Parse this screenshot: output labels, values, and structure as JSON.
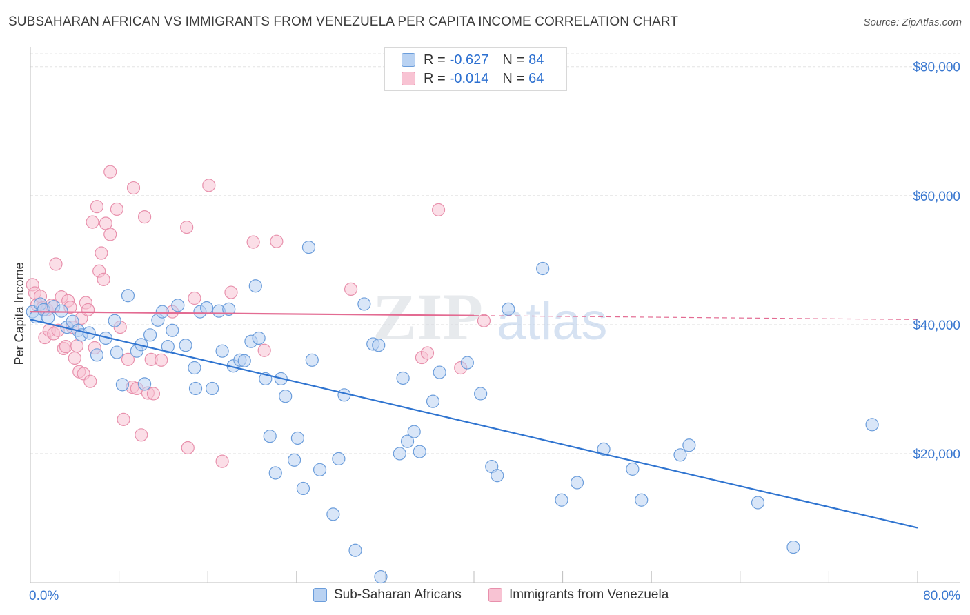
{
  "title": "SUBSAHARAN AFRICAN VS IMMIGRANTS FROM VENEZUELA PER CAPITA INCOME CORRELATION CHART",
  "source": "Source: ZipAtlas.com",
  "watermark": {
    "zip": "ZIP",
    "atlas": "atlas"
  },
  "legend": {
    "series1": {
      "r_label": "R =",
      "r_value": "-0.627",
      "n_label": "N =",
      "n_value": "84"
    },
    "series2": {
      "r_label": "R =",
      "r_value": "-0.014",
      "n_label": "N =",
      "n_value": "64"
    }
  },
  "bottom_legend": {
    "series1": "Sub-Saharan Africans",
    "series2": "Immigrants from Venezuela"
  },
  "colors": {
    "blue_fill": "#b9d2f2",
    "blue_stroke": "#6b9ddb",
    "blue_line": "#2f74d0",
    "pink_fill": "#f8c3d3",
    "pink_stroke": "#e890ac",
    "pink_line": "#e36b92",
    "tick_label": "#3a78d0",
    "grid": "#e4e4e4"
  },
  "chart_data": {
    "type": "scatter",
    "xlabel": "",
    "ylabel": "Per Capita Income",
    "xlim": [
      0,
      80
    ],
    "ylim": [
      0,
      82000
    ],
    "x_tick_labels": [
      "0.0%",
      "80.0%"
    ],
    "y_ticks": [
      {
        "value": 20000,
        "label": "$20,000"
      },
      {
        "value": 40000,
        "label": "$40,000"
      },
      {
        "value": 60000,
        "label": "$60,000"
      },
      {
        "value": 80000,
        "label": "$80,000"
      }
    ],
    "grid": true,
    "series": [
      {
        "name": "Sub-Saharan Africans",
        "color": "blue",
        "trend": {
          "x0": 0,
          "y0": 40800,
          "x1": 80,
          "y1": 8500
        },
        "points": [
          [
            0.2,
            42000
          ],
          [
            0.5,
            41200
          ],
          [
            0.9,
            43200
          ],
          [
            1.2,
            42300
          ],
          [
            1.6,
            41100
          ],
          [
            2.1,
            42800
          ],
          [
            2.8,
            42100
          ],
          [
            3.3,
            39600
          ],
          [
            3.8,
            40500
          ],
          [
            4.3,
            39100
          ],
          [
            4.6,
            38400
          ],
          [
            5.3,
            38700
          ],
          [
            6.0,
            35300
          ],
          [
            6.8,
            37900
          ],
          [
            7.6,
            40600
          ],
          [
            7.8,
            35700
          ],
          [
            8.3,
            30700
          ],
          [
            8.8,
            44500
          ],
          [
            9.6,
            35900
          ],
          [
            10.0,
            36900
          ],
          [
            10.3,
            30800
          ],
          [
            10.8,
            38400
          ],
          [
            11.5,
            40700
          ],
          [
            11.9,
            42000
          ],
          [
            12.4,
            36600
          ],
          [
            12.8,
            39100
          ],
          [
            13.3,
            43000
          ],
          [
            14.0,
            36800
          ],
          [
            14.8,
            33300
          ],
          [
            14.9,
            30100
          ],
          [
            15.3,
            42000
          ],
          [
            15.9,
            42600
          ],
          [
            16.4,
            30100
          ],
          [
            17.0,
            42100
          ],
          [
            17.3,
            35900
          ],
          [
            17.9,
            42400
          ],
          [
            18.3,
            33600
          ],
          [
            18.9,
            34500
          ],
          [
            19.3,
            34400
          ],
          [
            19.9,
            37400
          ],
          [
            20.3,
            46000
          ],
          [
            20.6,
            37900
          ],
          [
            21.2,
            31600
          ],
          [
            21.6,
            22700
          ],
          [
            22.1,
            17000
          ],
          [
            22.6,
            31600
          ],
          [
            23.0,
            28900
          ],
          [
            23.8,
            19000
          ],
          [
            24.1,
            22400
          ],
          [
            24.6,
            14600
          ],
          [
            25.4,
            34500
          ],
          [
            25.1,
            52000
          ],
          [
            26.1,
            17500
          ],
          [
            27.3,
            10600
          ],
          [
            27.8,
            19200
          ],
          [
            28.3,
            29100
          ],
          [
            29.3,
            5000
          ],
          [
            30.1,
            43200
          ],
          [
            30.9,
            37000
          ],
          [
            31.4,
            36800
          ],
          [
            31.6,
            900
          ],
          [
            33.3,
            20000
          ],
          [
            33.6,
            31700
          ],
          [
            34.0,
            21900
          ],
          [
            34.6,
            23400
          ],
          [
            35.1,
            20300
          ],
          [
            36.3,
            28100
          ],
          [
            36.9,
            32600
          ],
          [
            39.4,
            34100
          ],
          [
            40.6,
            29300
          ],
          [
            41.6,
            18000
          ],
          [
            42.1,
            16600
          ],
          [
            43.1,
            42400
          ],
          [
            46.2,
            48700
          ],
          [
            47.9,
            12800
          ],
          [
            49.3,
            15500
          ],
          [
            51.7,
            20700
          ],
          [
            54.3,
            17600
          ],
          [
            55.1,
            12800
          ],
          [
            58.6,
            19800
          ],
          [
            59.4,
            21300
          ],
          [
            65.6,
            12400
          ],
          [
            68.8,
            5500
          ],
          [
            75.9,
            24500
          ]
        ]
      },
      {
        "name": "Immigrants from Venezuela",
        "color": "pink",
        "trend": {
          "x0": 0,
          "y0": 42000,
          "x1": 80,
          "y1": 40800,
          "solid_until_x": 40
        },
        "points": [
          [
            0.2,
            46200
          ],
          [
            0.4,
            44900
          ],
          [
            0.6,
            43100
          ],
          [
            0.9,
            44400
          ],
          [
            1.1,
            42600
          ],
          [
            1.3,
            38000
          ],
          [
            1.5,
            42300
          ],
          [
            1.7,
            39100
          ],
          [
            1.9,
            43000
          ],
          [
            2.1,
            38600
          ],
          [
            2.3,
            49400
          ],
          [
            2.5,
            39100
          ],
          [
            2.8,
            44300
          ],
          [
            3.0,
            36300
          ],
          [
            3.2,
            36600
          ],
          [
            3.4,
            43700
          ],
          [
            3.6,
            42700
          ],
          [
            3.8,
            39600
          ],
          [
            4.0,
            34800
          ],
          [
            4.2,
            36700
          ],
          [
            4.4,
            32700
          ],
          [
            4.6,
            41000
          ],
          [
            4.8,
            32400
          ],
          [
            5.0,
            43400
          ],
          [
            5.2,
            42300
          ],
          [
            5.4,
            31200
          ],
          [
            5.6,
            55900
          ],
          [
            5.8,
            36400
          ],
          [
            6.0,
            58300
          ],
          [
            6.2,
            48300
          ],
          [
            6.4,
            51100
          ],
          [
            6.6,
            47000
          ],
          [
            6.8,
            55700
          ],
          [
            7.2,
            54000
          ],
          [
            7.2,
            63700
          ],
          [
            7.8,
            57900
          ],
          [
            8.1,
            39600
          ],
          [
            8.4,
            25300
          ],
          [
            8.8,
            34600
          ],
          [
            9.2,
            30300
          ],
          [
            9.3,
            61200
          ],
          [
            9.6,
            30100
          ],
          [
            10.0,
            22900
          ],
          [
            10.3,
            56700
          ],
          [
            10.6,
            29400
          ],
          [
            10.9,
            34600
          ],
          [
            11.1,
            29300
          ],
          [
            11.8,
            34500
          ],
          [
            12.8,
            42000
          ],
          [
            14.1,
            55100
          ],
          [
            14.2,
            20900
          ],
          [
            14.8,
            44100
          ],
          [
            16.1,
            61600
          ],
          [
            17.3,
            18800
          ],
          [
            18.1,
            45000
          ],
          [
            20.1,
            52800
          ],
          [
            21.1,
            36000
          ],
          [
            22.2,
            52900
          ],
          [
            28.9,
            45500
          ],
          [
            35.3,
            34900
          ],
          [
            35.8,
            35600
          ],
          [
            36.8,
            57800
          ],
          [
            38.8,
            33300
          ],
          [
            40.9,
            40600
          ]
        ]
      }
    ]
  }
}
